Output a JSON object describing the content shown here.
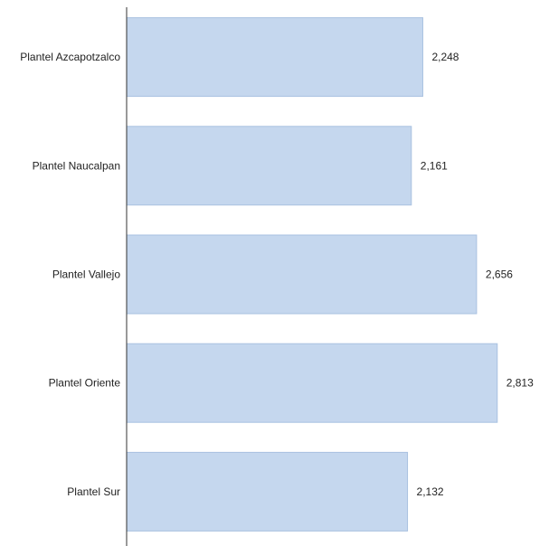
{
  "chart_data": {
    "type": "bar",
    "orientation": "horizontal",
    "title": "",
    "xlabel": "",
    "ylabel": "",
    "categories": [
      "Plantel Azcapotzalco",
      "Plantel Naucalpan",
      "Plantel Vallejo",
      "Plantel Oriente",
      "Plantel Sur"
    ],
    "values": [
      2248,
      2161,
      2656,
      2813,
      2132
    ],
    "value_labels": [
      "2,248",
      "2,161",
      "2,656",
      "2,813",
      "2,132"
    ],
    "xlim": [
      0,
      3000
    ],
    "grid": false,
    "legend": "none",
    "colors": {
      "bar_fill": "#c5d7ee",
      "bar_stroke": "#a9c1e0",
      "axis": "#333333",
      "text": "#222222"
    }
  }
}
